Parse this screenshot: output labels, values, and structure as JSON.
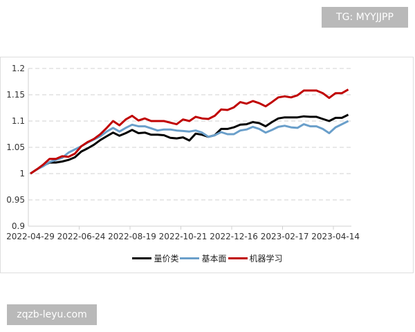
{
  "watermarks": {
    "top": "TG: MYYJJPP",
    "bottom": "zqzb-leyu.com"
  },
  "chart_data": {
    "type": "line",
    "title": "",
    "xlabel": "",
    "ylabel": "",
    "ylim": [
      0.9,
      1.2
    ],
    "yticks": [
      "0.9",
      "0.95",
      "1",
      "1.05",
      "1.1",
      "1.15",
      "1.2"
    ],
    "xtick_labels": [
      "2022-04-29",
      "2022-06-24",
      "2022-08-19",
      "2022-10-21",
      "2022-12-16",
      "2023-02-17",
      "2023-04-14"
    ],
    "grid": "horizontal dashed",
    "legend": "bottom",
    "series": [
      {
        "name": "量价类",
        "color": "#000000",
        "values": [
          1.0,
          1.008,
          1.015,
          1.021,
          1.021,
          1.023,
          1.026,
          1.031,
          1.042,
          1.048,
          1.055,
          1.064,
          1.071,
          1.078,
          1.072,
          1.077,
          1.083,
          1.077,
          1.078,
          1.074,
          1.074,
          1.073,
          1.068,
          1.067,
          1.069,
          1.063,
          1.076,
          1.074,
          1.07,
          1.073,
          1.085,
          1.085,
          1.088,
          1.093,
          1.094,
          1.098,
          1.096,
          1.09,
          1.098,
          1.105,
          1.107,
          1.107,
          1.107,
          1.109,
          1.108,
          1.108,
          1.104,
          1.1,
          1.106,
          1.106,
          1.112
        ]
      },
      {
        "name": "基本面",
        "color": "#6a9fca",
        "values": [
          1.0,
          1.008,
          1.014,
          1.022,
          1.026,
          1.03,
          1.04,
          1.046,
          1.052,
          1.059,
          1.065,
          1.071,
          1.08,
          1.087,
          1.08,
          1.087,
          1.093,
          1.09,
          1.09,
          1.086,
          1.082,
          1.084,
          1.084,
          1.082,
          1.081,
          1.08,
          1.082,
          1.078,
          1.07,
          1.073,
          1.079,
          1.075,
          1.075,
          1.082,
          1.084,
          1.089,
          1.085,
          1.078,
          1.083,
          1.089,
          1.091,
          1.088,
          1.087,
          1.094,
          1.09,
          1.09,
          1.085,
          1.077,
          1.088,
          1.094,
          1.1
        ]
      },
      {
        "name": "机器学习",
        "color": "#c00000",
        "values": [
          1.0,
          1.008,
          1.017,
          1.028,
          1.028,
          1.033,
          1.032,
          1.038,
          1.052,
          1.06,
          1.066,
          1.075,
          1.087,
          1.1,
          1.092,
          1.103,
          1.11,
          1.101,
          1.105,
          1.1,
          1.1,
          1.1,
          1.097,
          1.094,
          1.103,
          1.1,
          1.108,
          1.105,
          1.104,
          1.11,
          1.122,
          1.121,
          1.126,
          1.136,
          1.133,
          1.138,
          1.134,
          1.128,
          1.136,
          1.145,
          1.147,
          1.145,
          1.149,
          1.158,
          1.158,
          1.158,
          1.153,
          1.144,
          1.153,
          1.153,
          1.16
        ]
      }
    ]
  }
}
